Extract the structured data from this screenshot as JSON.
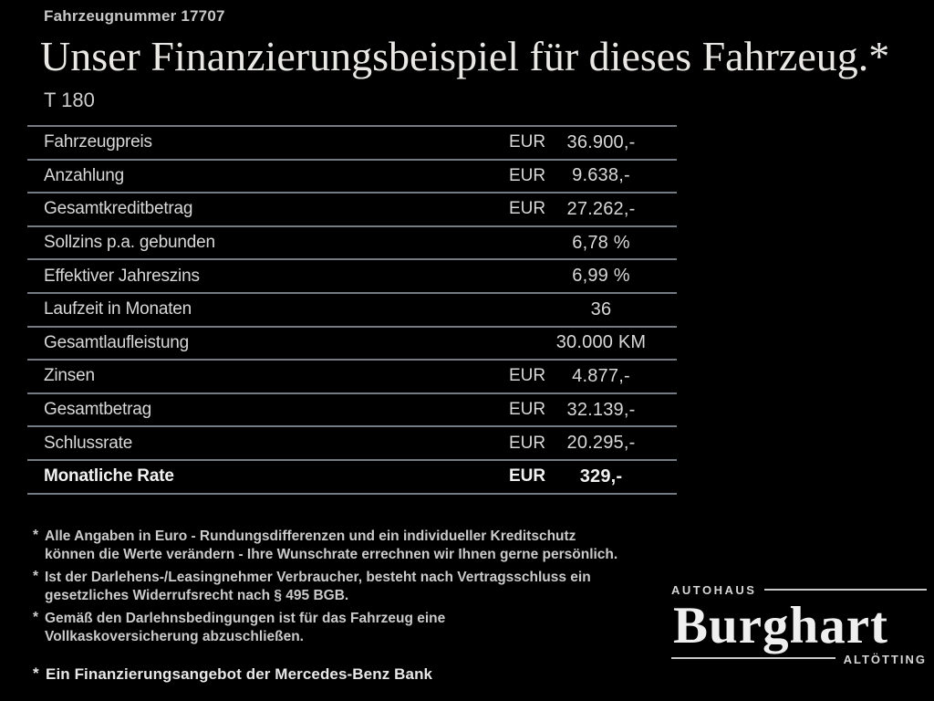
{
  "header": {
    "vehicle_number": "Fahrzeugnummer 17707",
    "title": "Unser Finanzierungsbeispiel für dieses Fahrzeug.*",
    "model": "T 180"
  },
  "table": {
    "rows": [
      {
        "label": "Fahrzeugpreis",
        "currency": "EUR",
        "value": "36.900,-",
        "bold": false
      },
      {
        "label": "Anzahlung",
        "currency": "EUR",
        "value": "9.638,-",
        "bold": false
      },
      {
        "label": "Gesamtkreditbetrag",
        "currency": "EUR",
        "value": "27.262,-",
        "bold": false
      },
      {
        "label": "Sollzins p.a. gebunden",
        "currency": "",
        "value": "6,78 %",
        "bold": false
      },
      {
        "label": "Effektiver Jahreszins",
        "currency": "",
        "value": "6,99 %",
        "bold": false
      },
      {
        "label": "Laufzeit in Monaten",
        "currency": "",
        "value": "36",
        "bold": false
      },
      {
        "label": "Gesamtlaufleistung",
        "currency": "",
        "value": "30.000 KM",
        "bold": false
      },
      {
        "label": "Zinsen",
        "currency": "EUR",
        "value": "4.877,-",
        "bold": false
      },
      {
        "label": "Gesamtbetrag",
        "currency": "EUR",
        "value": "32.139,-",
        "bold": false
      },
      {
        "label": "Schlussrate",
        "currency": "EUR",
        "value": "20.295,-",
        "bold": false
      },
      {
        "label": "Monatliche Rate",
        "currency": "EUR",
        "value": "329,-",
        "bold": true
      }
    ]
  },
  "footnotes": {
    "marker": "*",
    "items": [
      "Alle Angaben in Euro - Rundungsdifferenzen und ein individueller Kreditschutz\nkönnen die Werte verändern - Ihre Wunschrate errechnen wir Ihnen gerne persönlich.",
      "Ist der Darlehens-/Leasingnehmer Verbraucher, besteht nach Vertragsschluss ein\ngesetzliches Widerrufsrecht nach § 495 BGB.",
      "Gemäß den Darlehnsbedingungen ist für das Fahrzeug eine\nVollkaskoversicherung abzuschließen."
    ]
  },
  "bank_note": {
    "marker": "*",
    "text": "Ein Finanzierungsangebot der Mercedes-Benz Bank"
  },
  "logo": {
    "top": "Autohaus",
    "name": "Burghart",
    "bottom": "Altötting"
  },
  "colors": {
    "background": "#000000",
    "text": "#d6d6d6",
    "divider": "#757b82"
  }
}
